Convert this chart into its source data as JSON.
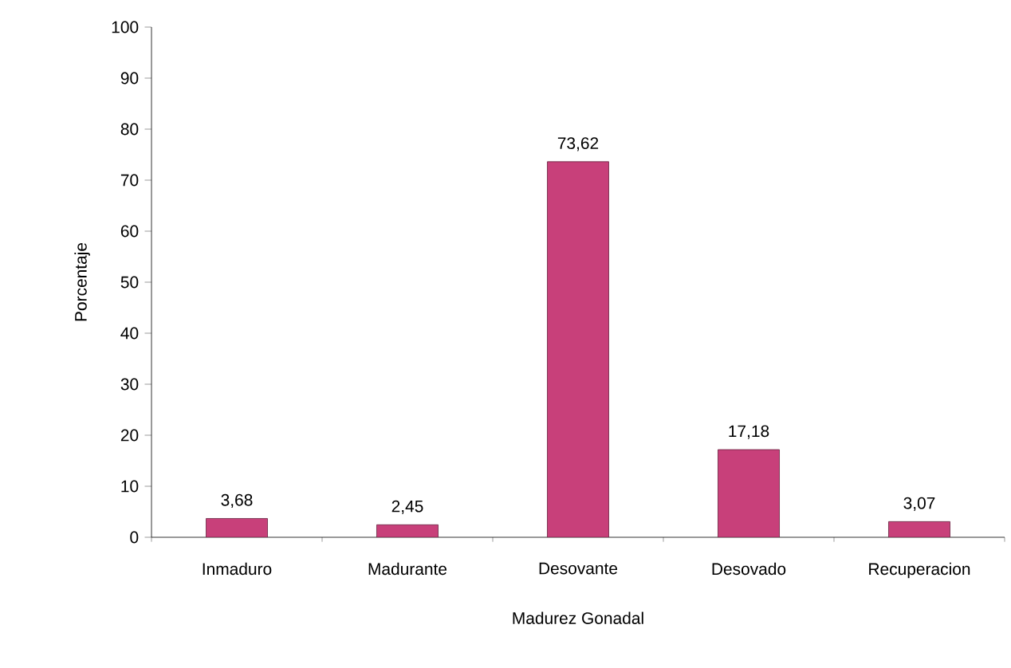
{
  "chart_data": {
    "type": "bar",
    "xlabel": "Madurez Gonadal",
    "ylabel": "Porcentaje",
    "categories": [
      "Inmaduro",
      "Madurante",
      "Desovante",
      "Desovado",
      "Recuperacion"
    ],
    "values": [
      3.68,
      2.45,
      73.62,
      17.18,
      3.07
    ],
    "value_labels": [
      "3,68",
      "2,45",
      "73,62",
      "17,18",
      "3,07"
    ],
    "color": "#c8407a",
    "ylim": [
      0,
      100
    ],
    "yticks": [
      0,
      10,
      20,
      30,
      40,
      50,
      60,
      70,
      80,
      90,
      100
    ],
    "grid": false
  }
}
